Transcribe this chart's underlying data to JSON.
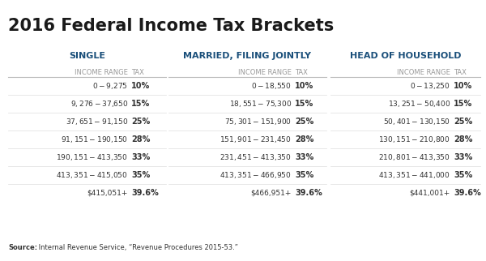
{
  "title": "2016 Federal Income Tax Brackets",
  "title_color": "#1a1a1a",
  "bg_color": "#ffffff",
  "section_headers": [
    "SINGLE",
    "MARRIED, FILING JOINTLY",
    "HEAD OF HOUSEHOLD"
  ],
  "header_color": "#1a4f7a",
  "subheader_color": "#999999",
  "single_rows": [
    [
      "$0 -   $9,275",
      "10%"
    ],
    [
      "$9,276 -  $37,650",
      "15%"
    ],
    [
      "$37,651 -  $91,150",
      "25%"
    ],
    [
      "$91,151 - $190,150",
      "28%"
    ],
    [
      "$190,151 - $413,350",
      "33%"
    ],
    [
      "$413,351 - $415,050",
      "35%"
    ],
    [
      "$415,051+",
      "39.6%"
    ]
  ],
  "married_rows": [
    [
      "$0 -   $18,550",
      "10%"
    ],
    [
      "$18,551 -  $75,300",
      "15%"
    ],
    [
      "$75,301 - $151,900",
      "25%"
    ],
    [
      "$151,901 - $231,450",
      "28%"
    ],
    [
      "$231,451 - $413,350",
      "33%"
    ],
    [
      "$413,351 - $466,950",
      "35%"
    ],
    [
      "$466,951+",
      "39.6%"
    ]
  ],
  "household_rows": [
    [
      "$0 -   $13,250",
      "10%"
    ],
    [
      "$13,251 -  $50,400",
      "15%"
    ],
    [
      "$50,401 - $130,150",
      "25%"
    ],
    [
      "$130,151 - $210,800",
      "28%"
    ],
    [
      "$210,801 - $413,350",
      "33%"
    ],
    [
      "$413,351 - $441,000",
      "35%"
    ],
    [
      "$441,001+",
      "39.6%"
    ]
  ],
  "source_bold": "Source:",
  "source_normal": " Internal Revenue Service, “Revenue Procedures 2015-53.”",
  "text_color": "#333333",
  "line_color": "#bbbbbb"
}
